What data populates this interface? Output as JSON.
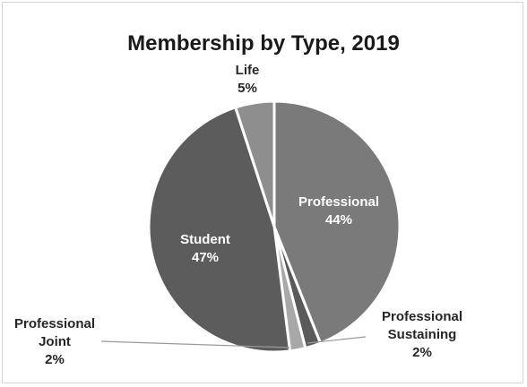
{
  "chart_data": {
    "type": "pie",
    "title": "Membership by Type, 2019",
    "slices": [
      {
        "name": "Professional",
        "label_lines": [
          "Professional"
        ],
        "value": 44,
        "pct_label": "44%",
        "color": "#7a7a7a",
        "label_inside": true
      },
      {
        "name": "Professional Sustaining",
        "label_lines": [
          "Professional",
          "Sustaining"
        ],
        "value": 2,
        "pct_label": "2%",
        "color": "#5a5a5a",
        "label_inside": false
      },
      {
        "name": "Professional Joint",
        "label_lines": [
          "Professional",
          "Joint"
        ],
        "value": 2,
        "pct_label": "2%",
        "color": "#a8a8a8",
        "label_inside": false
      },
      {
        "name": "Student",
        "label_lines": [
          "Student"
        ],
        "value": 47,
        "pct_label": "47%",
        "color": "#5c5c5c",
        "label_inside": true
      },
      {
        "name": "Life",
        "label_lines": [
          "Life"
        ],
        "value": 5,
        "pct_label": "5%",
        "color": "#8e8e8e",
        "label_inside": false
      }
    ],
    "legend": "none"
  }
}
